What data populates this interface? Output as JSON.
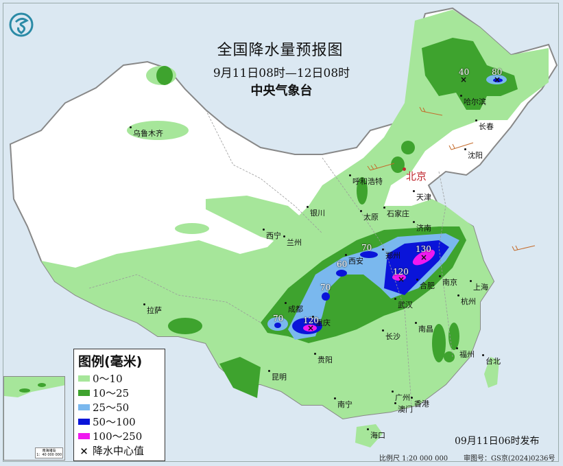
{
  "title": "全国降水量预报图",
  "period": "9月11日08时—12日08时",
  "issuer": "中央气象台",
  "logo": "cma-dragon-logo",
  "colors": {
    "sea": "#dbe8f2",
    "land": "#ffffff",
    "rain_0_10": "#a6e69a",
    "rain_10_25": "#3ea32e",
    "rain_25_50": "#7ab8ee",
    "rain_50_100": "#0a14d9",
    "rain_100_250": "#f019f0",
    "capital": "#c0282f"
  },
  "legend": {
    "title": "图例(毫米)",
    "items": [
      {
        "label": "0～10",
        "color": "#a6e69a"
      },
      {
        "label": "10～25",
        "color": "#3ea32e"
      },
      {
        "label": "25～50",
        "color": "#7ab8ee"
      },
      {
        "label": "50～100",
        "color": "#0a14d9"
      },
      {
        "label": "100～250",
        "color": "#f019f0"
      }
    ],
    "center_marker": "×",
    "center_label": "降水中心值"
  },
  "cities": [
    {
      "name": "乌鲁木齐"
    },
    {
      "name": "哈尔滨"
    },
    {
      "name": "长春"
    },
    {
      "name": "沈阳"
    },
    {
      "name": "北京"
    },
    {
      "name": "天津"
    },
    {
      "name": "呼和浩特"
    },
    {
      "name": "石家庄"
    },
    {
      "name": "太原"
    },
    {
      "name": "济南"
    },
    {
      "name": "银川"
    },
    {
      "name": "西宁"
    },
    {
      "name": "兰州"
    },
    {
      "name": "西安"
    },
    {
      "name": "郑州"
    },
    {
      "name": "合肥"
    },
    {
      "name": "南京"
    },
    {
      "name": "上海"
    },
    {
      "name": "杭州"
    },
    {
      "name": "武汉"
    },
    {
      "name": "成都"
    },
    {
      "name": "重庆"
    },
    {
      "name": "长沙"
    },
    {
      "name": "南昌"
    },
    {
      "name": "福州"
    },
    {
      "name": "台北"
    },
    {
      "name": "拉萨"
    },
    {
      "name": "贵阳"
    },
    {
      "name": "昆明"
    },
    {
      "name": "南宁"
    },
    {
      "name": "广州"
    },
    {
      "name": "澳门"
    },
    {
      "name": "香港"
    },
    {
      "name": "海口"
    }
  ],
  "rain_centers": [
    {
      "value": "40"
    },
    {
      "value": "80"
    },
    {
      "value": "70"
    },
    {
      "value": "60"
    },
    {
      "value": "70"
    },
    {
      "value": "70"
    },
    {
      "value": "120"
    },
    {
      "value": "120"
    },
    {
      "value": "130"
    }
  ],
  "inset": {
    "title": "南海诸岛",
    "scale": "1：40 000 000"
  },
  "published": "09月11日06时发布",
  "scale": "比例尺 1:20 000 000",
  "map_approval": "审图号：GS京(2024)0236号"
}
